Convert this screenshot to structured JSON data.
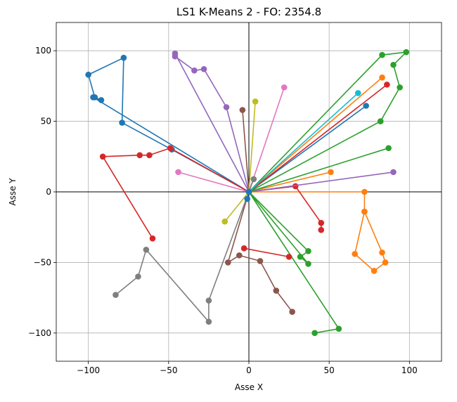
{
  "chart_data": {
    "type": "line",
    "title": "LS1 K-Means 2 - FO: 2354.8",
    "xlabel": "Asse X",
    "ylabel": "Asse Y",
    "xlim": [
      -120,
      120
    ],
    "ylim": [
      -120,
      120
    ],
    "xticks": [
      -100,
      -50,
      0,
      50,
      100
    ],
    "yticks": [
      -100,
      -50,
      0,
      50,
      100
    ],
    "xtick_labels": [
      "−100",
      "−50",
      "0",
      "50",
      "100"
    ],
    "ytick_labels": [
      "−100",
      "−50",
      "0",
      "50",
      "100"
    ],
    "grid": true,
    "series": [
      {
        "color": "#1f77b4",
        "x": [
          0,
          -48,
          -79,
          -78,
          -100,
          -96,
          -92,
          -97,
          0,
          73
        ],
        "y": [
          0,
          30,
          49,
          95,
          83,
          67,
          65,
          67,
          0,
          61
        ]
      },
      {
        "color": "#ff7f0e",
        "x": [
          0,
          51,
          0,
          83,
          0,
          72,
          72,
          66,
          78,
          85,
          83,
          72
        ],
        "y": [
          0,
          14,
          0,
          81,
          0,
          0,
          -14,
          -44,
          -56,
          -50,
          -43,
          -14
        ]
      },
      {
        "color": "#2ca02c",
        "x": [
          0,
          83,
          98,
          90,
          94,
          82,
          0,
          87,
          0,
          37,
          32,
          37,
          0,
          56,
          41
        ],
        "y": [
          0,
          97,
          99,
          90,
          74,
          50,
          0,
          31,
          0,
          -42,
          -46,
          -51,
          0,
          -97,
          -100
        ]
      },
      {
        "color": "#d62728",
        "x": [
          0,
          86,
          0,
          -49,
          -62,
          -68,
          -91,
          -60
        ],
        "y": [
          0,
          76,
          0,
          31,
          26,
          26,
          25,
          -33
        ]
      },
      {
        "color": "#d62728",
        "x": [
          0,
          29,
          45,
          45
        ],
        "y": [
          0,
          4,
          -22,
          -27
        ]
      },
      {
        "color": "#d62728",
        "x": [
          -3,
          25
        ],
        "y": [
          -40,
          -46
        ]
      },
      {
        "color": "#9467bd",
        "x": [
          0,
          -14,
          -28,
          -34,
          -46,
          -46,
          0,
          90
        ],
        "y": [
          0,
          60,
          87,
          86,
          96,
          98,
          0,
          14
        ]
      },
      {
        "color": "#8c564b",
        "x": [
          -4,
          0,
          -13,
          -6,
          7,
          17,
          27
        ],
        "y": [
          58,
          0,
          -50,
          -45,
          -49,
          -70,
          -85
        ]
      },
      {
        "color": "#e377c2",
        "x": [
          22,
          0,
          -44
        ],
        "y": [
          74,
          0,
          14
        ]
      },
      {
        "color": "#7f7f7f",
        "x": [
          0,
          -25,
          -25,
          -64,
          -69,
          -83
        ],
        "y": [
          0,
          -77,
          -92,
          -41,
          -60,
          -73
        ]
      },
      {
        "color": "#bcbd22",
        "x": [
          4,
          0,
          -15
        ],
        "y": [
          64,
          0,
          -21
        ]
      },
      {
        "color": "#17becf",
        "x": [
          0,
          68
        ],
        "y": [
          0,
          70
        ]
      },
      {
        "color": "#7f7f7f",
        "x": [
          0,
          3
        ],
        "y": [
          0,
          9
        ]
      },
      {
        "color": "#1f77b4",
        "x": [
          0,
          -1
        ],
        "y": [
          0,
          -5
        ]
      }
    ]
  }
}
